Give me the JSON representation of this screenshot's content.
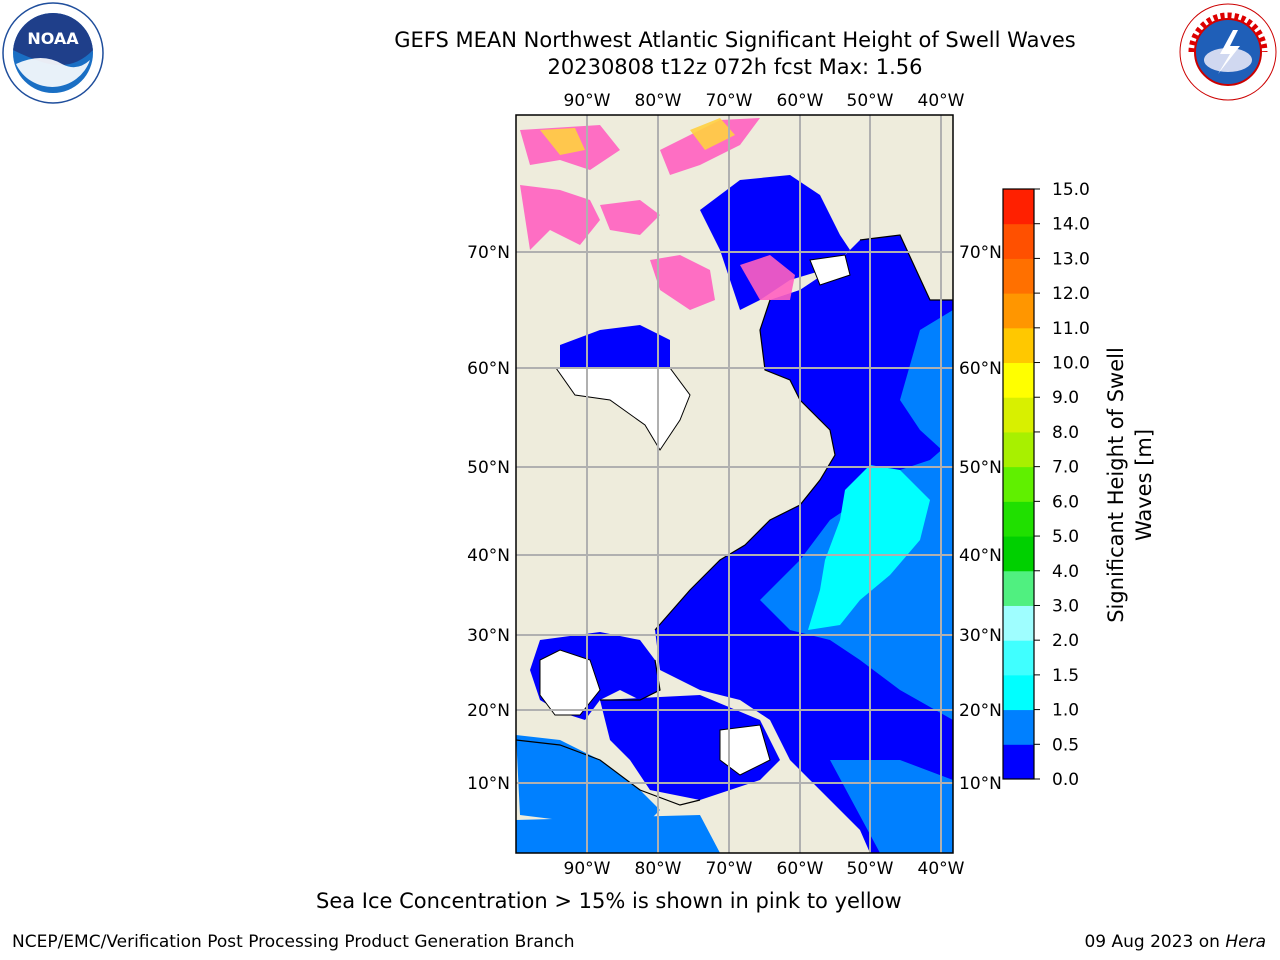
{
  "header": {
    "title_line1": "GEFS MEAN Northwest Atlantic Significant Height of Swell Waves",
    "title_line2": "20230808 t12z 072h fcst   Max: 1.56"
  },
  "logos": {
    "left": "NOAA",
    "left_ring_text": "NATIONAL OCEANIC AND ATMOSPHERIC ADMINISTRATION · U.S. DEPARTMENT OF COMMERCE",
    "right_ring_text": "NATIONAL WEATHER SERVICE"
  },
  "map": {
    "region": "Northwest Atlantic",
    "lon_labels": [
      "90°W",
      "80°W",
      "70°W",
      "60°W",
      "50°W",
      "40°W"
    ],
    "lat_labels": [
      "10°N",
      "20°N",
      "30°N",
      "40°N",
      "50°N",
      "60°N",
      "70°N"
    ],
    "grid": true,
    "land_color": "#eeecdc",
    "grid_color": "#b0b0b0"
  },
  "colorbar": {
    "label_line1": "Significant Height of Swell",
    "label_line2": "Waves [m]",
    "ticks": [
      "0.0",
      "0.5",
      "1.0",
      "1.5",
      "2.0",
      "3.0",
      "4.0",
      "5.0",
      "6.0",
      "7.0",
      "8.0",
      "9.0",
      "10.0",
      "11.0",
      "12.0",
      "13.0",
      "14.0",
      "15.0"
    ],
    "colors": [
      "#0000ff",
      "#0080ff",
      "#00ffff",
      "#40ffff",
      "#9ffeff",
      "#50f080",
      "#00d000",
      "#20e000",
      "#60f000",
      "#a8f000",
      "#d8f000",
      "#ffff00",
      "#ffc800",
      "#ff9600",
      "#ff7000",
      "#ff5000",
      "#ff2000"
    ]
  },
  "notes": {
    "sea_ice": "Sea Ice Concentration > 15% is shown in pink to yellow"
  },
  "footer": {
    "left": "NCEP/EMC/Verification Post Processing Product Generation Branch",
    "right_date": "09 Aug 2023 on ",
    "right_host": "Hera"
  }
}
